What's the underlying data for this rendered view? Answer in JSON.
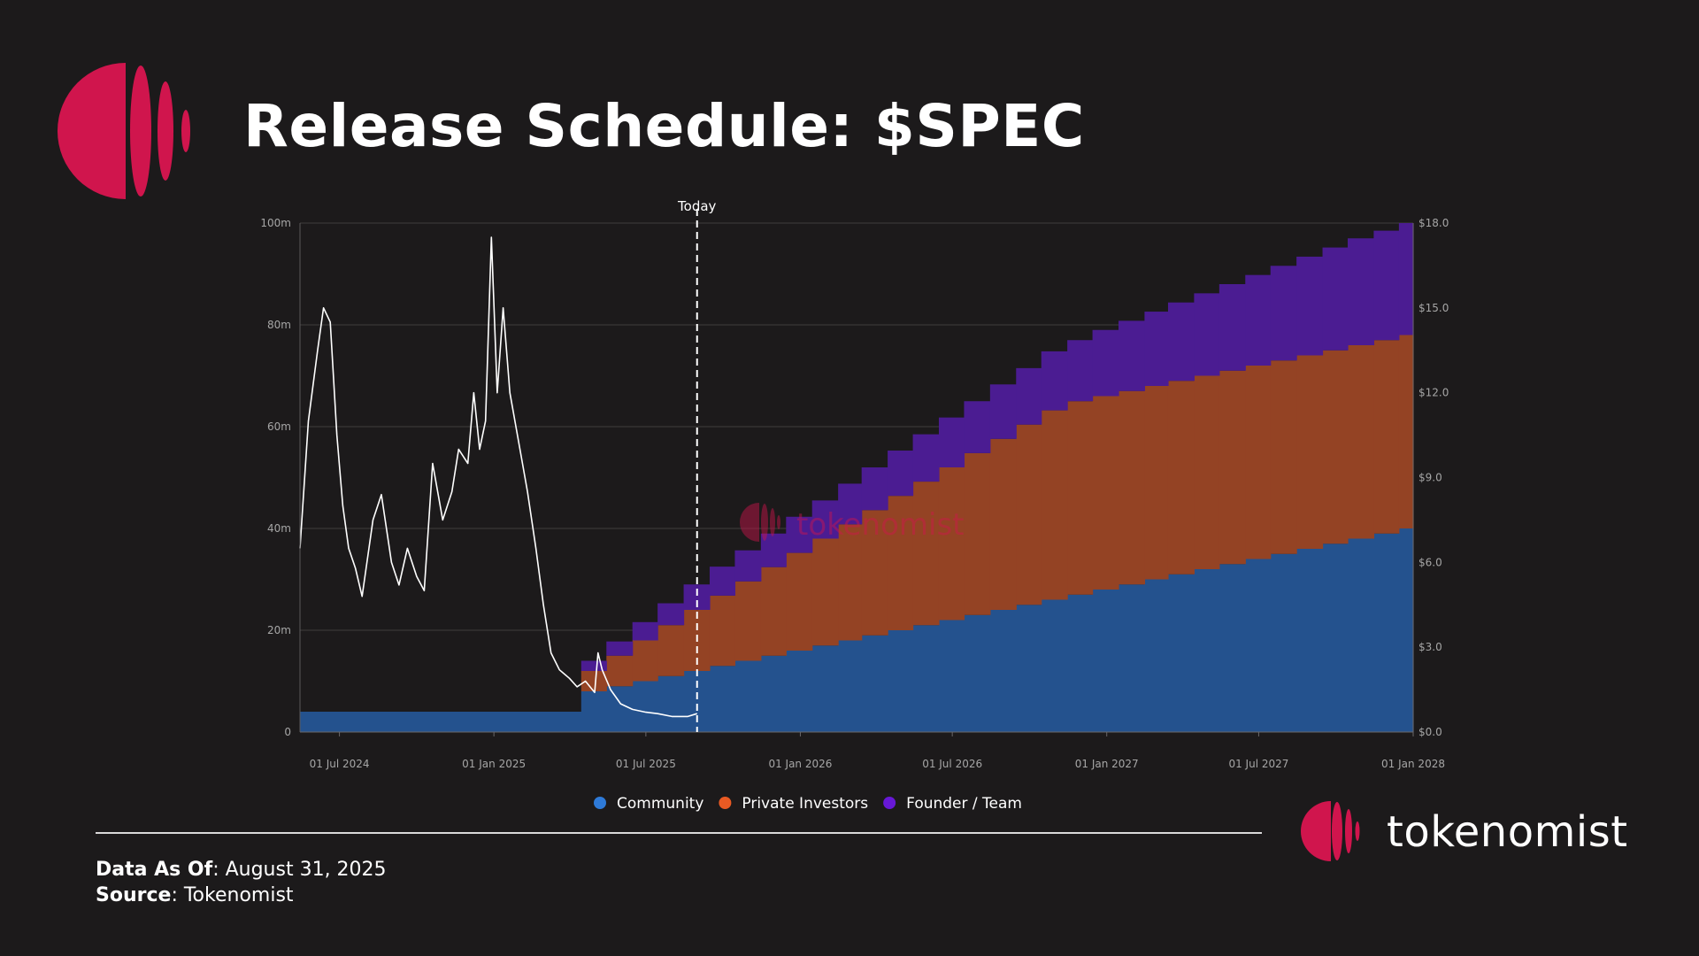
{
  "header": {
    "title": "Release Schedule: $SPEC"
  },
  "colors": {
    "background": "#1c1a1b",
    "brand": "#d0154d",
    "community": "#24528e",
    "private_investors": "#944324",
    "founder_team": "#4b1c92",
    "legend_community": "#2e7ad8",
    "legend_private": "#ea5a23",
    "legend_founder": "#6718d6",
    "price_line": "#ffffff"
  },
  "chart_data": {
    "type": "area",
    "stacked": true,
    "x_tick_labels": [
      "01 Jul 2024",
      "01 Jan 2025",
      "01 Jul 2025",
      "01 Jan 2026",
      "01 Jul 2026",
      "01 Jan 2027",
      "01 Jul 2027",
      "01 Jan 2028"
    ],
    "x_tick_dates": [
      "2024-07-01",
      "2025-01-01",
      "2025-07-01",
      "2026-01-01",
      "2026-07-01",
      "2027-01-01",
      "2027-07-01",
      "2028-01-01"
    ],
    "x_range": [
      "2024-05-15",
      "2028-01-01"
    ],
    "y_left": {
      "ticks": [
        "0",
        "20m",
        "40m",
        "60m",
        "80m",
        "100m"
      ],
      "range": [
        0,
        100
      ],
      "unit": "m"
    },
    "y_right": {
      "ticks": [
        "$0.0",
        "$3.0",
        "$6.0",
        "$9.0",
        "$12.0",
        "$15.0",
        "$18.0"
      ],
      "range": [
        0,
        18
      ]
    },
    "today_label": "Today",
    "today_date": "2025-08-31",
    "grid": true,
    "legend_position": "bottom",
    "series": [
      {
        "name": "Community",
        "steps": [
          [
            "2024-05-15",
            4.0
          ],
          [
            "2025-04-15",
            8.0
          ],
          [
            "2025-05-15",
            9.0
          ],
          [
            "2025-06-15",
            10.0
          ],
          [
            "2025-07-15",
            11.0
          ],
          [
            "2025-08-15",
            12.0
          ],
          [
            "2025-09-15",
            13.0
          ],
          [
            "2025-10-15",
            14.0
          ],
          [
            "2025-11-15",
            15.0
          ],
          [
            "2025-12-15",
            16.0
          ],
          [
            "2026-01-15",
            17.0
          ],
          [
            "2026-02-15",
            18.0
          ],
          [
            "2026-03-15",
            19.0
          ],
          [
            "2026-04-15",
            20.0
          ],
          [
            "2026-05-15",
            21.0
          ],
          [
            "2026-06-15",
            22.0
          ],
          [
            "2026-07-15",
            23.0
          ],
          [
            "2026-08-15",
            24.0
          ],
          [
            "2026-09-15",
            25.0
          ],
          [
            "2026-10-15",
            26.0
          ],
          [
            "2026-11-15",
            27.0
          ],
          [
            "2026-12-15",
            28.0
          ],
          [
            "2027-01-15",
            29.0
          ],
          [
            "2027-02-15",
            30.0
          ],
          [
            "2027-03-15",
            31.0
          ],
          [
            "2027-04-15",
            32.0
          ],
          [
            "2027-05-15",
            33.0
          ],
          [
            "2027-06-15",
            34.0
          ],
          [
            "2027-07-15",
            35.0
          ],
          [
            "2027-08-15",
            36.0
          ],
          [
            "2027-09-15",
            37.0
          ],
          [
            "2027-10-15",
            38.0
          ],
          [
            "2027-11-15",
            39.0
          ],
          [
            "2027-12-15",
            40.0
          ]
        ]
      },
      {
        "name": "Private Investors",
        "steps": [
          [
            "2024-05-15",
            0
          ],
          [
            "2025-04-15",
            4.0
          ],
          [
            "2025-05-15",
            6.0
          ],
          [
            "2025-06-15",
            8.0
          ],
          [
            "2025-07-15",
            10.0
          ],
          [
            "2025-08-15",
            12.0
          ],
          [
            "2025-09-15",
            13.8
          ],
          [
            "2025-10-15",
            15.6
          ],
          [
            "2025-11-15",
            17.4
          ],
          [
            "2025-12-15",
            19.2
          ],
          [
            "2026-01-15",
            21.0
          ],
          [
            "2026-02-15",
            22.8
          ],
          [
            "2026-03-15",
            24.6
          ],
          [
            "2026-04-15",
            26.4
          ],
          [
            "2026-05-15",
            28.2
          ],
          [
            "2026-06-15",
            30.0
          ],
          [
            "2026-07-15",
            31.8
          ],
          [
            "2026-08-15",
            33.6
          ],
          [
            "2026-09-15",
            35.4
          ],
          [
            "2026-10-15",
            37.2
          ],
          [
            "2026-11-15",
            38.0
          ],
          [
            "2026-12-15",
            38.0
          ],
          [
            "2027-01-15",
            38.0
          ],
          [
            "2027-02-15",
            38.0
          ],
          [
            "2027-03-15",
            38.0
          ],
          [
            "2027-04-15",
            38.0
          ],
          [
            "2027-05-15",
            38.0
          ],
          [
            "2027-06-15",
            38.0
          ],
          [
            "2027-07-15",
            38.0
          ],
          [
            "2027-08-15",
            38.0
          ],
          [
            "2027-09-15",
            38.0
          ],
          [
            "2027-10-15",
            38.0
          ],
          [
            "2027-11-15",
            38.0
          ],
          [
            "2027-12-15",
            38.0
          ]
        ]
      },
      {
        "name": "Founder / Team",
        "steps": [
          [
            "2024-05-15",
            0
          ],
          [
            "2025-04-15",
            2.0
          ],
          [
            "2025-05-15",
            2.8
          ],
          [
            "2025-06-15",
            3.6
          ],
          [
            "2025-07-15",
            4.3
          ],
          [
            "2025-08-15",
            5.0
          ],
          [
            "2025-09-15",
            5.7
          ],
          [
            "2025-10-15",
            6.1
          ],
          [
            "2025-11-15",
            6.6
          ],
          [
            "2025-12-15",
            7.1
          ],
          [
            "2026-01-15",
            7.5
          ],
          [
            "2026-02-15",
            8.0
          ],
          [
            "2026-03-15",
            8.4
          ],
          [
            "2026-04-15",
            8.9
          ],
          [
            "2026-05-15",
            9.3
          ],
          [
            "2026-06-15",
            9.8
          ],
          [
            "2026-07-15",
            10.2
          ],
          [
            "2026-08-15",
            10.7
          ],
          [
            "2026-09-15",
            11.1
          ],
          [
            "2026-10-15",
            11.6
          ],
          [
            "2026-11-15",
            12.0
          ],
          [
            "2026-12-15",
            13.0
          ],
          [
            "2027-01-15",
            13.8
          ],
          [
            "2027-02-15",
            14.6
          ],
          [
            "2027-03-15",
            15.4
          ],
          [
            "2027-04-15",
            16.2
          ],
          [
            "2027-05-15",
            17.0
          ],
          [
            "2027-06-15",
            17.8
          ],
          [
            "2027-07-15",
            18.6
          ],
          [
            "2027-08-15",
            19.4
          ],
          [
            "2027-09-15",
            20.2
          ],
          [
            "2027-10-15",
            21.0
          ],
          [
            "2027-11-15",
            21.5
          ],
          [
            "2027-12-15",
            22.0
          ]
        ]
      }
    ],
    "price": {
      "axis": "right",
      "points": [
        [
          "2024-05-15",
          6.5
        ],
        [
          "2024-05-25",
          11.0
        ],
        [
          "2024-06-05",
          13.5
        ],
        [
          "2024-06-12",
          15.0
        ],
        [
          "2024-06-20",
          14.5
        ],
        [
          "2024-06-28",
          10.5
        ],
        [
          "2024-07-05",
          8.0
        ],
        [
          "2024-07-12",
          6.5
        ],
        [
          "2024-07-20",
          5.8
        ],
        [
          "2024-07-28",
          4.8
        ],
        [
          "2024-08-10",
          7.5
        ],
        [
          "2024-08-20",
          8.4
        ],
        [
          "2024-09-01",
          6.0
        ],
        [
          "2024-09-10",
          5.2
        ],
        [
          "2024-09-20",
          6.5
        ],
        [
          "2024-10-01",
          5.5
        ],
        [
          "2024-10-10",
          5.0
        ],
        [
          "2024-10-20",
          9.5
        ],
        [
          "2024-11-01",
          7.5
        ],
        [
          "2024-11-12",
          8.5
        ],
        [
          "2024-11-20",
          10.0
        ],
        [
          "2024-12-01",
          9.5
        ],
        [
          "2024-12-08",
          12.0
        ],
        [
          "2024-12-15",
          10.0
        ],
        [
          "2024-12-22",
          11.0
        ],
        [
          "2024-12-29",
          17.5
        ],
        [
          "2025-01-05",
          12.0
        ],
        [
          "2025-01-12",
          15.0
        ],
        [
          "2025-01-20",
          12.0
        ],
        [
          "2025-02-01",
          10.0
        ],
        [
          "2025-02-10",
          8.5
        ],
        [
          "2025-02-20",
          6.5
        ],
        [
          "2025-03-01",
          4.5
        ],
        [
          "2025-03-10",
          2.8
        ],
        [
          "2025-03-20",
          2.2
        ],
        [
          "2025-04-01",
          1.9
        ],
        [
          "2025-04-10",
          1.6
        ],
        [
          "2025-04-20",
          1.8
        ],
        [
          "2025-05-01",
          1.4
        ],
        [
          "2025-05-05",
          2.8
        ],
        [
          "2025-05-10",
          2.2
        ],
        [
          "2025-05-20",
          1.5
        ],
        [
          "2025-06-01",
          1.0
        ],
        [
          "2025-06-15",
          0.8
        ],
        [
          "2025-07-01",
          0.7
        ],
        [
          "2025-07-15",
          0.65
        ],
        [
          "2025-08-01",
          0.55
        ],
        [
          "2025-08-20",
          0.55
        ],
        [
          "2025-08-31",
          0.65
        ]
      ]
    }
  },
  "legend": {
    "items": [
      "Community",
      "Private Investors",
      "Founder / Team"
    ]
  },
  "watermark": {
    "text": "tokenomist"
  },
  "footer": {
    "data_as_of_label": "Data As Of",
    "data_as_of_value": ": August 31, 2025",
    "source_label": "Source",
    "source_value": ": Tokenomist"
  },
  "brand": {
    "name": "tokenomist"
  }
}
